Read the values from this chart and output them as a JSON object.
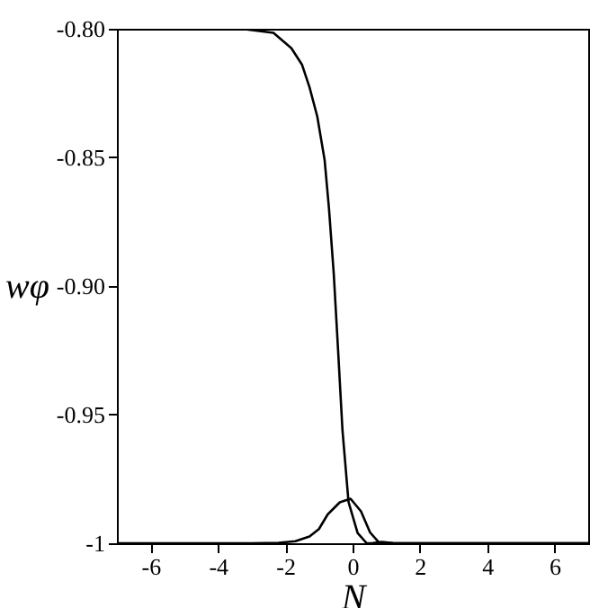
{
  "chart_data": {
    "type": "line",
    "xlabel": "N",
    "ylabel": "wφ",
    "xlim": [
      -7,
      7
    ],
    "xticks": [
      -6,
      -4,
      -2,
      0,
      2,
      4,
      6
    ],
    "ylim": [
      -1,
      -0.8
    ],
    "yticks": [
      -1,
      -0.95,
      {
        "value": -0.9,
        "label": "-0.90"
      },
      -0.85,
      {
        "value": -0.8,
        "label": "-0.80"
      }
    ],
    "grid": false,
    "series": [
      {
        "color": "#000000",
        "x": [
          -7,
          -4,
          -3.2,
          -2.35,
          -1.82,
          -1.5,
          -1.28,
          -1.05,
          -0.83,
          -0.7,
          -0.56,
          -0.43,
          -0.3,
          -0.12,
          0.15,
          0.42,
          0.6,
          0.87,
          1.2,
          2,
          7
        ],
        "values": [
          -0.8,
          -0.8,
          -0.8002,
          -0.8016,
          -0.8075,
          -0.814,
          -0.8227,
          -0.834,
          -0.851,
          -0.87,
          -0.895,
          -0.925,
          -0.956,
          -0.984,
          -0.996,
          -1,
          -0.9999,
          -0.9995,
          -0.9999,
          -1,
          -1
        ]
      },
      {
        "color": "#000000",
        "x": [
          -7,
          -3,
          -2.2,
          -1.7,
          -1.28,
          -1,
          -0.74,
          -0.38,
          -0.06,
          0.25,
          0.52,
          0.79,
          1.2,
          7
        ],
        "values": [
          -1,
          -1,
          -0.9998,
          -0.9992,
          -0.9974,
          -0.9945,
          -0.9888,
          -0.9841,
          -0.9827,
          -0.9876,
          -0.9958,
          -0.9998,
          -1,
          -1
        ]
      }
    ]
  }
}
